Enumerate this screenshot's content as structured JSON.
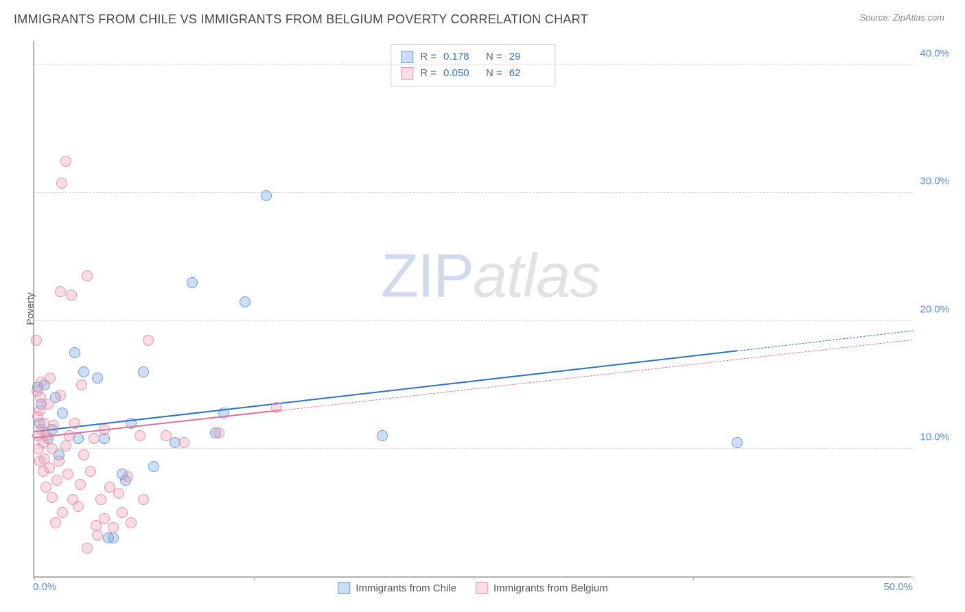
{
  "title": "IMMIGRANTS FROM CHILE VS IMMIGRANTS FROM BELGIUM POVERTY CORRELATION CHART",
  "source": "Source: ZipAtlas.com",
  "watermark": {
    "part1": "ZIP",
    "part2": "atlas"
  },
  "axes": {
    "y_label": "Poverty",
    "x_min": 0,
    "x_max": 50,
    "y_min": 0,
    "y_max": 42,
    "x_ticks": [
      0,
      12.5,
      25,
      37.5,
      50
    ],
    "x_tick_labels": {
      "first": "0.0%",
      "last": "50.0%"
    },
    "y_gridlines": [
      10,
      20,
      30,
      40
    ],
    "y_tick_labels": [
      "10.0%",
      "20.0%",
      "30.0%",
      "40.0%"
    ],
    "grid_color": "#d8d8d8",
    "axis_color": "#b0b0b0",
    "tick_label_color": "#5b8fd6"
  },
  "series": [
    {
      "name": "Immigrants from Chile",
      "color_fill": "rgba(110,160,220,0.35)",
      "color_stroke": "#6b9fd8",
      "marker_radius": 8,
      "trend": {
        "x1": 0,
        "y1": 11.3,
        "x2": 50,
        "y2": 19.2,
        "color": "#2d70c8",
        "obs_max_x": 40
      },
      "R": "0.178",
      "N": "29",
      "points": [
        [
          0.2,
          14.8
        ],
        [
          0.3,
          12.0
        ],
        [
          0.4,
          13.5
        ],
        [
          0.6,
          15.0
        ],
        [
          0.8,
          10.8
        ],
        [
          1.0,
          11.5
        ],
        [
          1.2,
          14.0
        ],
        [
          1.4,
          9.5
        ],
        [
          1.6,
          12.8
        ],
        [
          2.3,
          17.5
        ],
        [
          2.5,
          10.8
        ],
        [
          2.8,
          16.0
        ],
        [
          3.6,
          15.5
        ],
        [
          4.0,
          10.8
        ],
        [
          4.2,
          3.0
        ],
        [
          4.5,
          3.0
        ],
        [
          5.0,
          8.0
        ],
        [
          5.2,
          7.5
        ],
        [
          5.5,
          12.0
        ],
        [
          6.2,
          16.0
        ],
        [
          6.8,
          8.6
        ],
        [
          8.0,
          10.5
        ],
        [
          9.0,
          23.0
        ],
        [
          10.3,
          11.2
        ],
        [
          10.8,
          12.8
        ],
        [
          12.0,
          21.5
        ],
        [
          13.2,
          29.8
        ],
        [
          19.8,
          11.0
        ],
        [
          40.0,
          10.5
        ]
      ]
    },
    {
      "name": "Immigrants from Belgium",
      "color_fill": "rgba(235,140,165,0.30)",
      "color_stroke": "#e792ab",
      "marker_radius": 8,
      "trend": {
        "x1": 0,
        "y1": 10.8,
        "x2": 50,
        "y2": 18.5,
        "color": "#e36f93",
        "obs_max_x": 14
      },
      "R": "0.050",
      "N": "62",
      "points": [
        [
          0.1,
          18.5
        ],
        [
          0.15,
          14.5
        ],
        [
          0.2,
          12.5
        ],
        [
          0.2,
          11.0
        ],
        [
          0.25,
          10.0
        ],
        [
          0.3,
          9.0
        ],
        [
          0.3,
          13.0
        ],
        [
          0.35,
          14.0
        ],
        [
          0.4,
          11.5
        ],
        [
          0.4,
          15.2
        ],
        [
          0.5,
          8.2
        ],
        [
          0.5,
          10.5
        ],
        [
          0.55,
          12.0
        ],
        [
          0.6,
          9.2
        ],
        [
          0.65,
          7.0
        ],
        [
          0.7,
          11.0
        ],
        [
          0.8,
          13.5
        ],
        [
          0.85,
          8.5
        ],
        [
          0.9,
          15.5
        ],
        [
          1.0,
          6.2
        ],
        [
          1.0,
          10.0
        ],
        [
          1.1,
          11.8
        ],
        [
          1.2,
          4.2
        ],
        [
          1.3,
          7.5
        ],
        [
          1.4,
          9.0
        ],
        [
          1.5,
          14.2
        ],
        [
          1.5,
          22.3
        ],
        [
          1.55,
          30.8
        ],
        [
          1.6,
          5.0
        ],
        [
          1.8,
          32.5
        ],
        [
          1.8,
          10.2
        ],
        [
          1.9,
          8.0
        ],
        [
          2.0,
          11.0
        ],
        [
          2.1,
          22.0
        ],
        [
          2.2,
          6.0
        ],
        [
          2.3,
          12.0
        ],
        [
          2.5,
          5.5
        ],
        [
          2.6,
          7.2
        ],
        [
          2.7,
          15.0
        ],
        [
          2.8,
          9.5
        ],
        [
          3.0,
          2.2
        ],
        [
          3.0,
          23.5
        ],
        [
          3.2,
          8.2
        ],
        [
          3.4,
          10.8
        ],
        [
          3.5,
          4.0
        ],
        [
          3.6,
          3.2
        ],
        [
          3.8,
          6.0
        ],
        [
          4.0,
          11.5
        ],
        [
          4.0,
          4.5
        ],
        [
          4.3,
          7.0
        ],
        [
          4.5,
          3.8
        ],
        [
          4.8,
          6.5
        ],
        [
          5.0,
          5.0
        ],
        [
          5.3,
          7.8
        ],
        [
          5.5,
          4.2
        ],
        [
          6.0,
          11.0
        ],
        [
          6.2,
          6.0
        ],
        [
          6.5,
          18.5
        ],
        [
          7.5,
          11.0
        ],
        [
          8.5,
          10.5
        ],
        [
          10.5,
          11.2
        ],
        [
          13.8,
          13.2
        ]
      ]
    }
  ],
  "legend_labels": {
    "R": "R  =",
    "N": "N  ="
  }
}
